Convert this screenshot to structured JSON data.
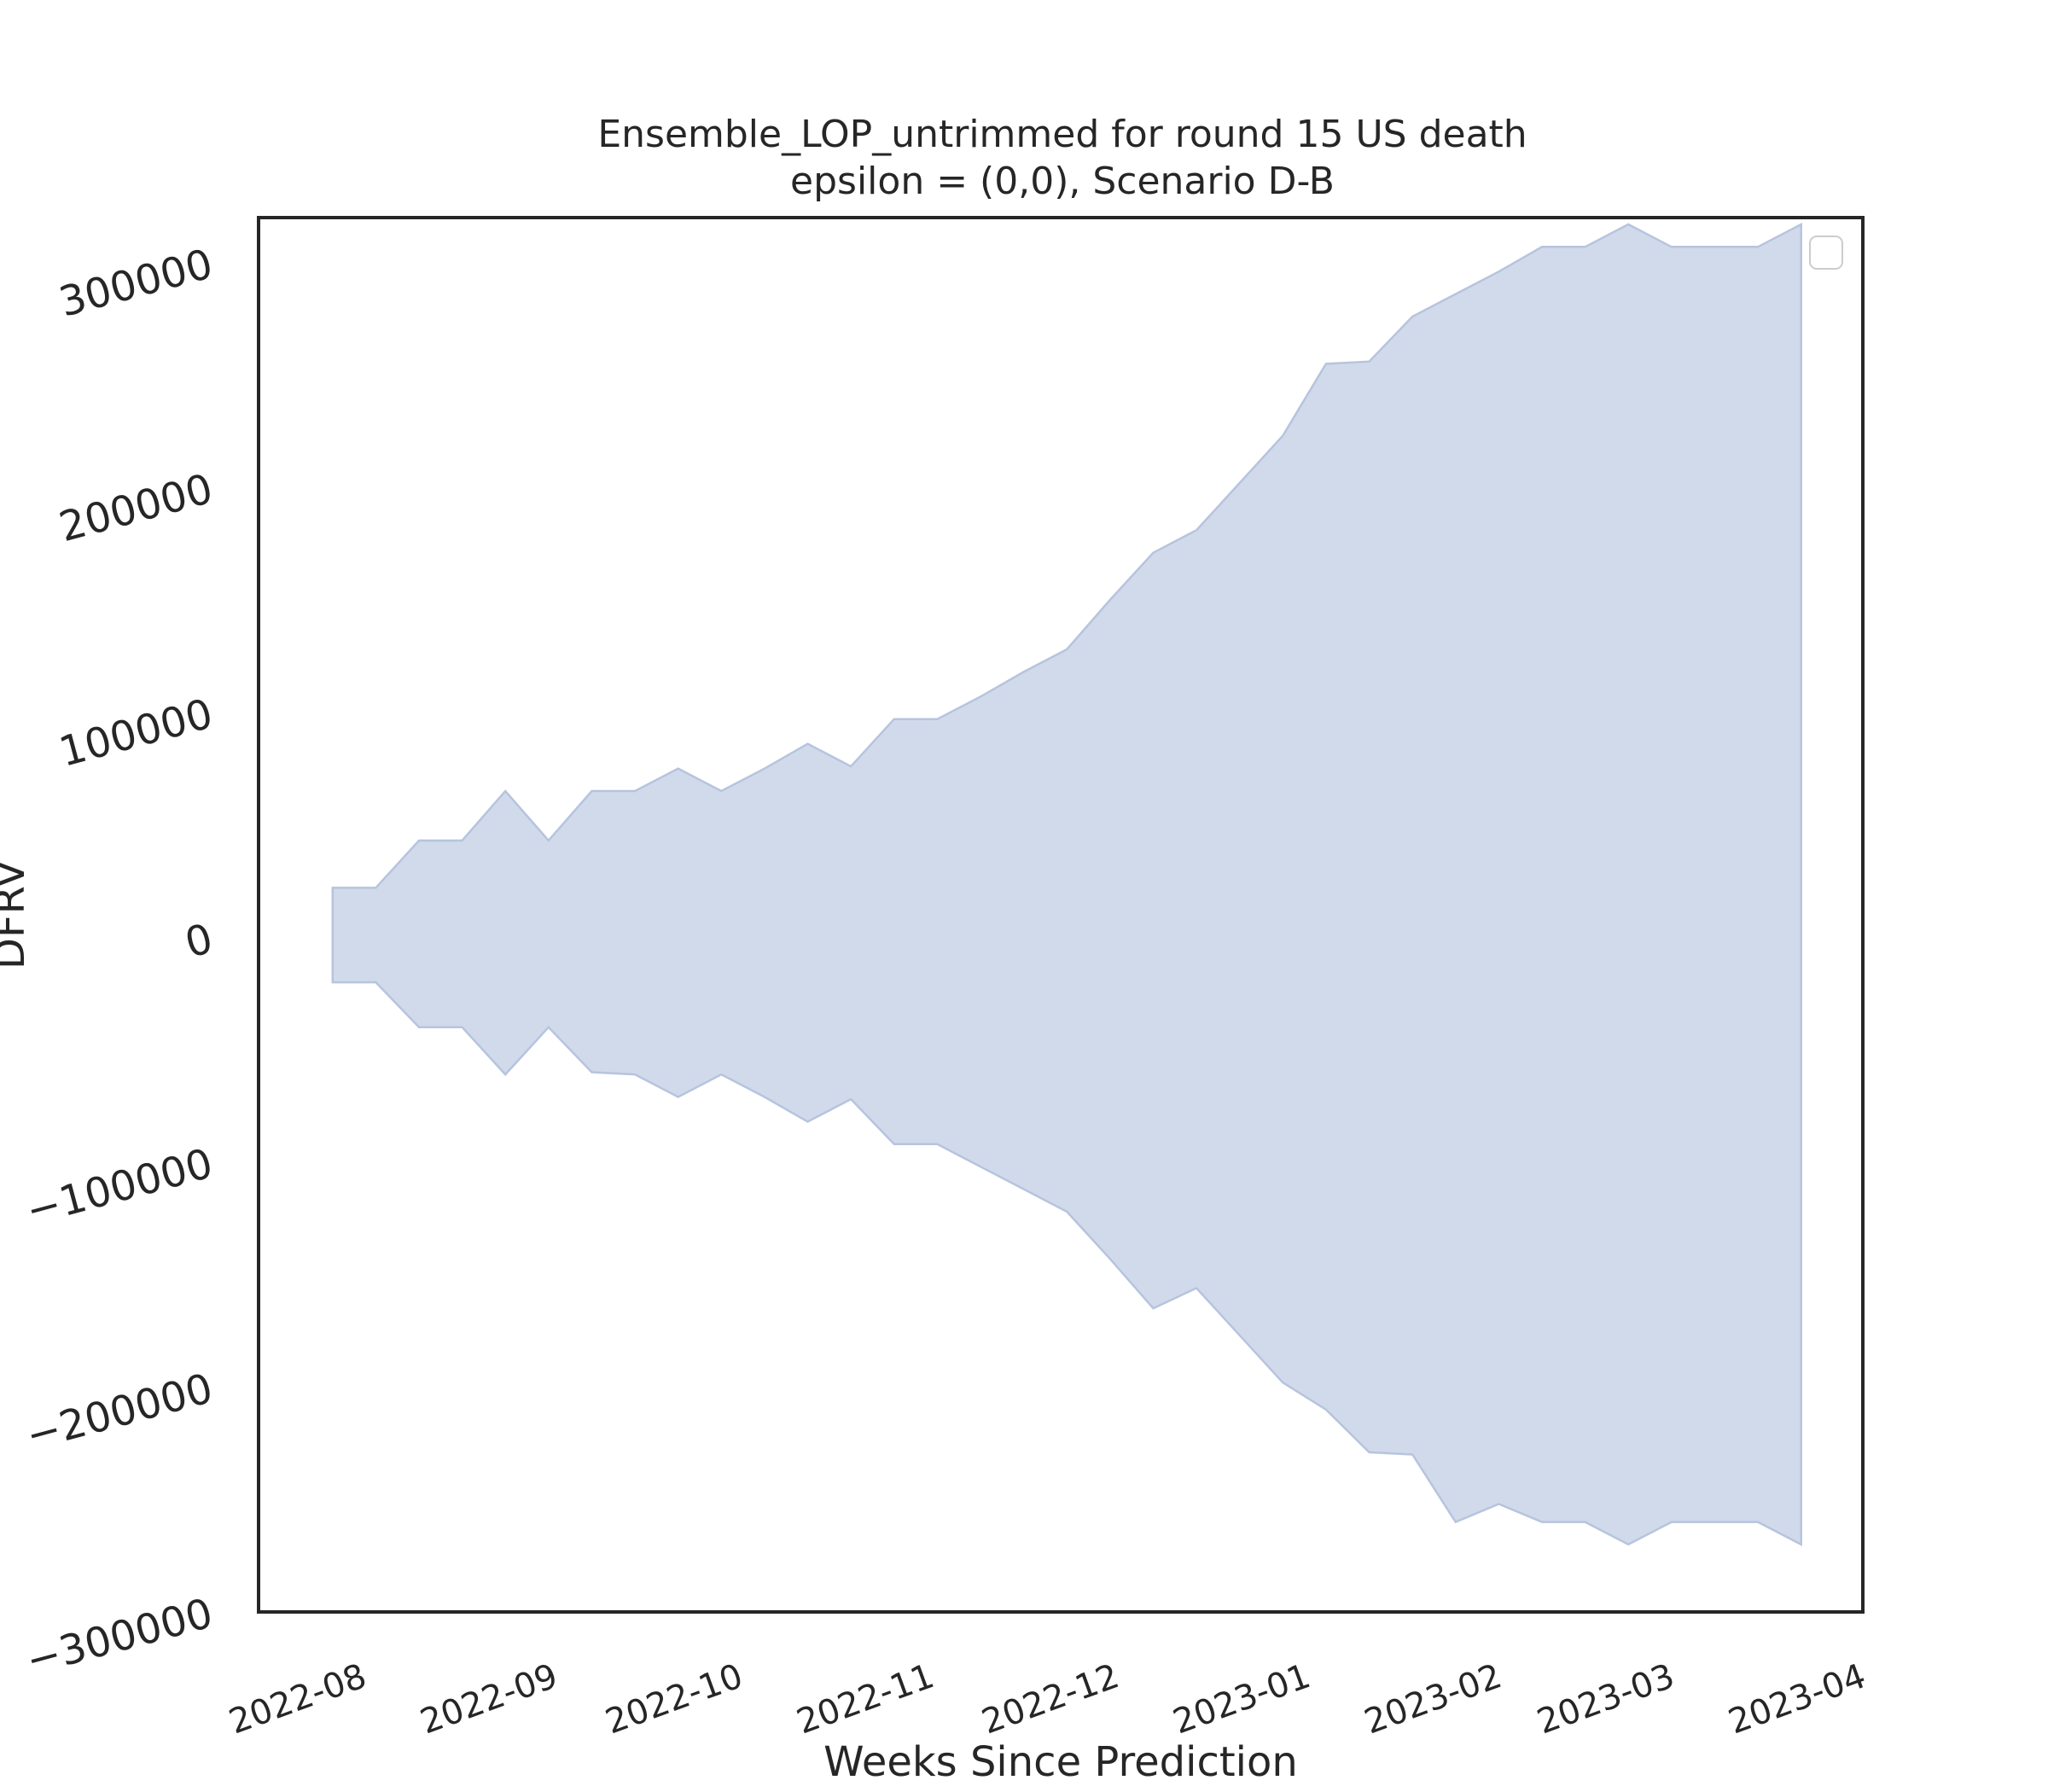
{
  "chart_data": {
    "type": "area",
    "title": "Ensemble_LOP_untrimmed for round 15 US death",
    "subtitle": "epsilon = (0,0), Scenario D-B",
    "xlabel": "Weeks Since Prediction",
    "ylabel": "DFRV",
    "xlim": [
      "2022-07-15",
      "2023-04-01"
    ],
    "ylim": [
      -300000,
      320000
    ],
    "x_tick_labels": [
      "2022-08",
      "2022-09",
      "2022-10",
      "2022-11",
      "2022-12",
      "2023-01",
      "2023-02",
      "2023-03",
      "2023-04"
    ],
    "x_tick_dates": [
      "2022-08-01",
      "2022-09-01",
      "2022-10-01",
      "2022-11-01",
      "2022-12-01",
      "2023-01-01",
      "2023-02-01",
      "2023-03-01",
      "2023-04-01"
    ],
    "y_ticks": [
      -300000,
      -200000,
      -100000,
      0,
      100000,
      200000,
      300000
    ],
    "y_tick_labels": [
      "−300000",
      "−200000",
      "−100000",
      "0",
      "100000",
      "200000",
      "300000"
    ],
    "grid": false,
    "legend": {
      "position": "top-right",
      "entries": []
    },
    "fill_color": "#d1daeb",
    "edge_color": "#b6c4de",
    "band": {
      "x": [
        "2022-07-27",
        "2022-08-03",
        "2022-08-10",
        "2022-08-17",
        "2022-08-24",
        "2022-08-31",
        "2022-09-07",
        "2022-09-14",
        "2022-09-21",
        "2022-09-28",
        "2022-10-05",
        "2022-10-12",
        "2022-10-19",
        "2022-10-26",
        "2022-11-02",
        "2022-11-09",
        "2022-11-16",
        "2022-11-23",
        "2022-11-30",
        "2022-12-07",
        "2022-12-14",
        "2022-12-21",
        "2022-12-28",
        "2023-01-04",
        "2023-01-11",
        "2023-01-18",
        "2023-01-25",
        "2023-02-01",
        "2023-02-08",
        "2023-02-15",
        "2023-02-22",
        "2023-03-01",
        "2023-03-08",
        "2023-03-15",
        "2023-03-22"
      ],
      "upper": [
        22000,
        22000,
        43000,
        43000,
        65000,
        43000,
        65000,
        65000,
        75000,
        65000,
        75000,
        86000,
        76000,
        97000,
        97000,
        107000,
        118000,
        128000,
        150000,
        171000,
        181000,
        202000,
        223000,
        255000,
        256000,
        276000,
        286000,
        296000,
        307000,
        307000,
        317000,
        307000,
        307000,
        307000,
        317000
      ],
      "lower": [
        -20000,
        -20000,
        -40000,
        -40000,
        -61000,
        -40000,
        -60000,
        -61000,
        -71000,
        -61000,
        -71000,
        -82000,
        -72000,
        -92000,
        -92000,
        -102000,
        -112000,
        -122000,
        -143000,
        -165000,
        -156000,
        -177000,
        -198000,
        -210000,
        -229000,
        -230000,
        -260000,
        -252000,
        -260000,
        -260000,
        -270000,
        -260000,
        -260000,
        -260000,
        -270000
      ]
    }
  }
}
